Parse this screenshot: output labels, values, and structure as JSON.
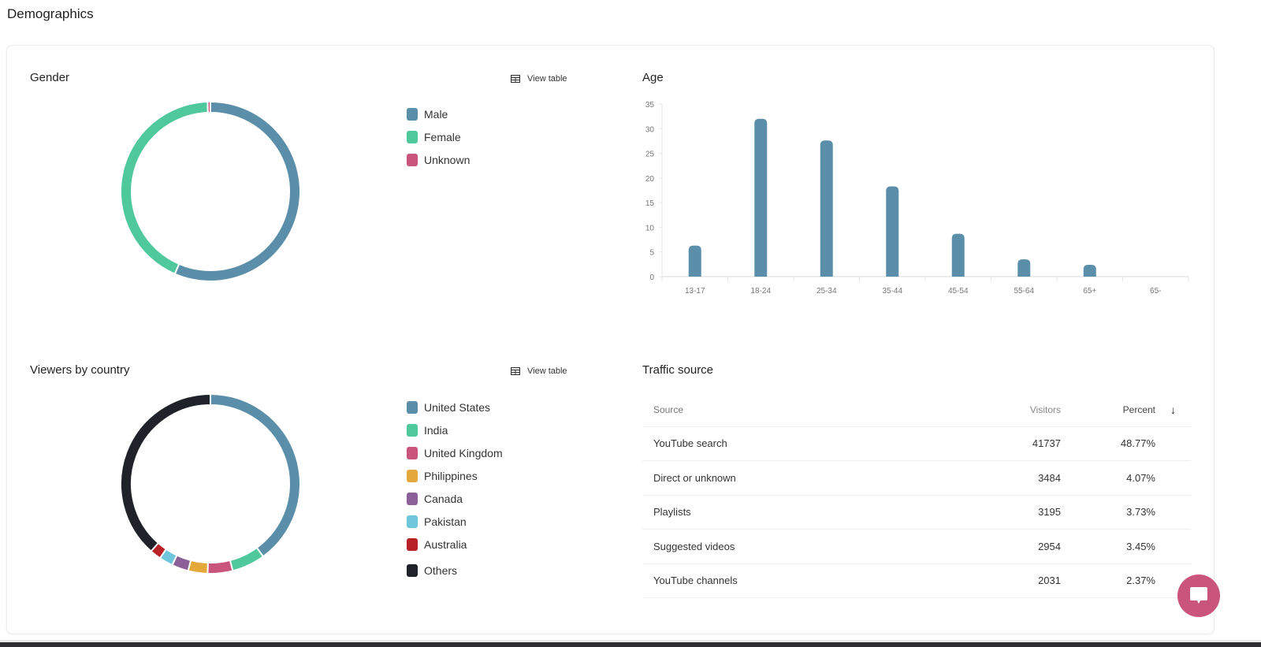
{
  "page": {
    "title": "Demographics"
  },
  "gender": {
    "title": "Gender",
    "view_table_label": "View table",
    "legend": [
      {
        "label": "Male",
        "color": "#5b8fa9"
      },
      {
        "label": "Female",
        "color": "#4fc89b"
      },
      {
        "label": "Unknown",
        "color": "#c9547c"
      }
    ]
  },
  "age": {
    "title": "Age"
  },
  "country": {
    "title": "Viewers by country",
    "view_table_label": "View table",
    "legend": [
      {
        "label": "United States",
        "color": "#5b8fa9"
      },
      {
        "label": "India",
        "color": "#4fc89b"
      },
      {
        "label": "United Kingdom",
        "color": "#c9547c"
      },
      {
        "label": "Philippines",
        "color": "#e5a83b"
      },
      {
        "label": "Canada",
        "color": "#8b5f98"
      },
      {
        "label": "Pakistan",
        "color": "#70c7dc"
      },
      {
        "label": "Australia",
        "color": "#b82126"
      },
      {
        "label": "Others",
        "color": "#1f2329"
      }
    ]
  },
  "traffic": {
    "title": "Traffic source",
    "columns": {
      "source": "Source",
      "visitors": "Visitors",
      "percent": "Percent",
      "sort_icon": "↓"
    },
    "rows": [
      {
        "source": "YouTube search",
        "visitors": "41737",
        "percent": "48.77%"
      },
      {
        "source": "Direct or unknown",
        "visitors": "3484",
        "percent": "4.07%"
      },
      {
        "source": "Playlists",
        "visitors": "3195",
        "percent": "3.73%"
      },
      {
        "source": "Suggested videos",
        "visitors": "2954",
        "percent": "3.45%"
      },
      {
        "source": "YouTube channels",
        "visitors": "2031",
        "percent": "2.37%"
      }
    ]
  },
  "chart_data": [
    {
      "type": "pie",
      "title": "Gender",
      "donut": true,
      "categories": [
        "Male",
        "Female",
        "Unknown"
      ],
      "values": [
        56.5,
        43,
        0.5
      ],
      "colors": [
        "#5b8fa9",
        "#4fc89b",
        "#c9547c"
      ],
      "legend_position": "right"
    },
    {
      "type": "bar",
      "title": "Age",
      "categories": [
        "13-17",
        "18-24",
        "25-34",
        "35-44",
        "45-54",
        "55-64",
        "65+",
        "65-"
      ],
      "values": [
        6.3,
        32,
        27.6,
        18.3,
        8.7,
        3.5,
        2.4,
        0
      ],
      "xlabel": "",
      "ylabel": "",
      "ylim": [
        0,
        35
      ],
      "yticks": [
        0,
        5,
        10,
        15,
        20,
        25,
        30,
        35
      ],
      "color": "#5b8fa9",
      "grid": false
    },
    {
      "type": "pie",
      "title": "Viewers by country",
      "donut": true,
      "categories": [
        "United States",
        "India",
        "United Kingdom",
        "Philippines",
        "Canada",
        "Pakistan",
        "Australia",
        "Others"
      ],
      "values": [
        40,
        6,
        4.5,
        3.5,
        3,
        2.5,
        2,
        38.5
      ],
      "colors": [
        "#5b8fa9",
        "#4fc89b",
        "#c9547c",
        "#e5a83b",
        "#8b5f98",
        "#70c7dc",
        "#b82126",
        "#1f2329"
      ],
      "legend_position": "right"
    }
  ]
}
